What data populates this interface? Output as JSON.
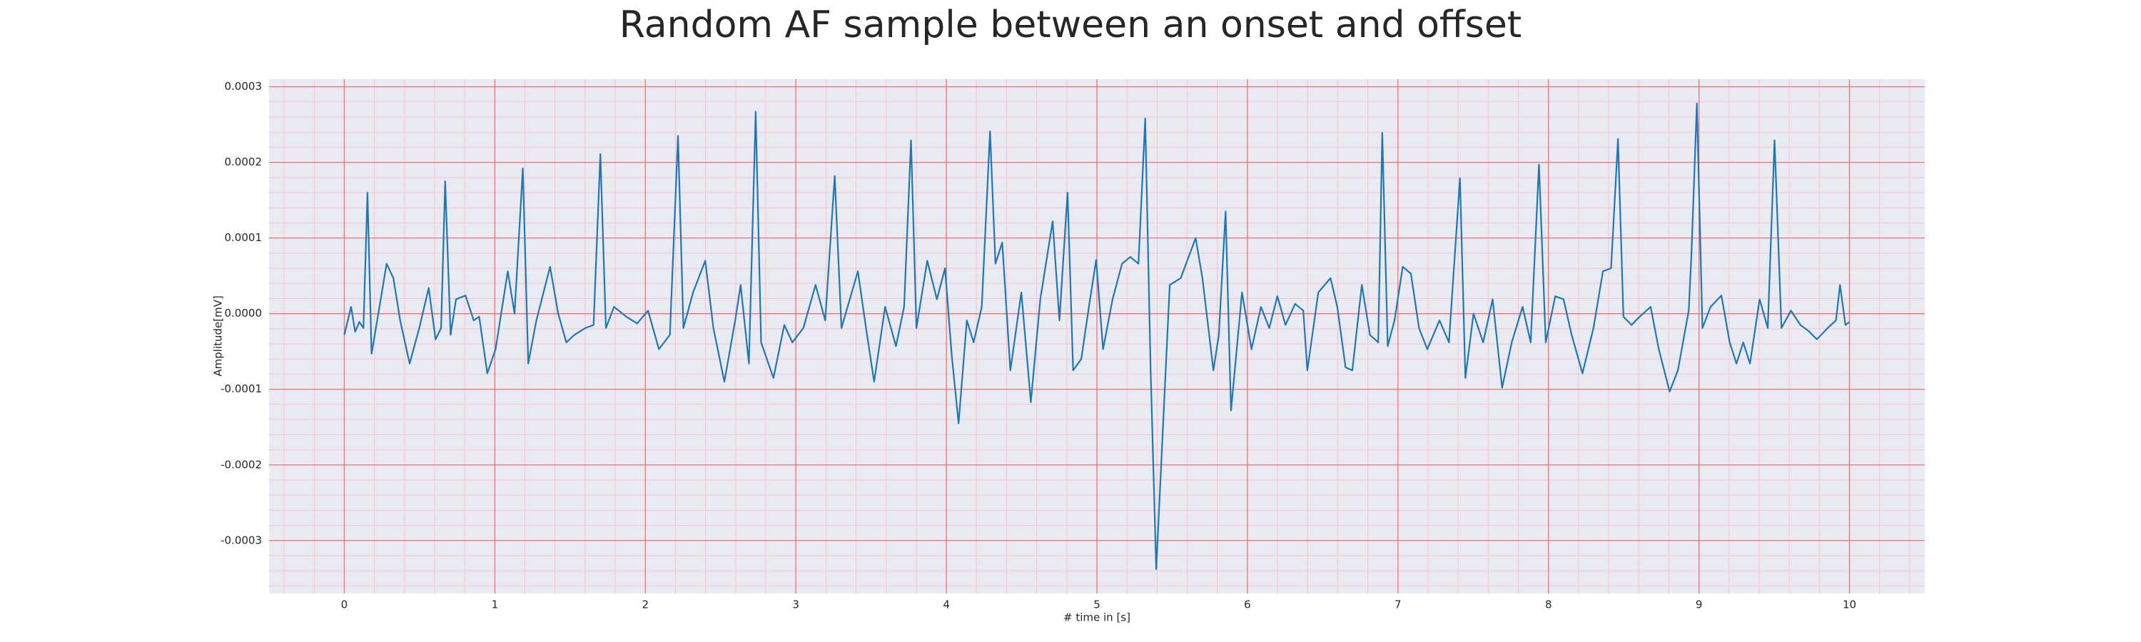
{
  "chart_data": {
    "type": "line",
    "title": "Random AF sample between an onset and offset",
    "xlabel": "# time in [s]",
    "ylabel": "Amplitude[mV]",
    "xlim": [
      -0.5,
      10.5
    ],
    "ylim": [
      -0.00037,
      0.00031
    ],
    "xticks": [
      0,
      1,
      2,
      3,
      4,
      5,
      6,
      7,
      8,
      9,
      10
    ],
    "yticks": [
      -0.0003,
      -0.0002,
      -0.0001,
      {
        "value": 0,
        "label": "0.0000"
      },
      0.0001,
      0.0002,
      0.0003
    ],
    "grid": true,
    "minor_grid_divisions": 5,
    "background": "#eaeaf2",
    "grid_color": "#f07070",
    "minor_grid_color": "#f6c4cc",
    "series": [
      {
        "color": "#1f77b4",
        "x": [
          0,
          0.045,
          0.072,
          0.1,
          0.127,
          0.154,
          0.181,
          0.226,
          0.281,
          0.326,
          0.371,
          0.434,
          0.498,
          0.561,
          0.606,
          0.643,
          0.67,
          0.706,
          0.742,
          0.805,
          0.86,
          0.896,
          0.95,
          1.005,
          1.086,
          1.131,
          1.186,
          1.222,
          1.276,
          1.367,
          1.421,
          1.475,
          1.529,
          1.602,
          1.656,
          1.701,
          1.738,
          1.792,
          1.873,
          1.946,
          2.018,
          2.09,
          2.163,
          2.217,
          2.253,
          2.317,
          2.398,
          2.452,
          2.525,
          2.597,
          2.633,
          2.688,
          2.733,
          2.769,
          2.851,
          2.923,
          2.977,
          3.05,
          3.131,
          3.195,
          3.258,
          3.303,
          3.412,
          3.466,
          3.52,
          3.593,
          3.665,
          3.719,
          3.765,
          3.801,
          3.873,
          3.937,
          3.991,
          4.036,
          4.081,
          4.136,
          4.181,
          4.235,
          4.29,
          4.326,
          4.371,
          4.425,
          4.498,
          4.561,
          4.624,
          4.706,
          4.751,
          4.805,
          4.842,
          4.896,
          4.95,
          4.995,
          5.041,
          5.104,
          5.167,
          5.222,
          5.276,
          5.321,
          5.357,
          5.394,
          5.439,
          5.484,
          5.557,
          5.656,
          5.701,
          5.774,
          5.81,
          5.855,
          5.891,
          5.964,
          6.027,
          6.09,
          6.145,
          6.199,
          6.253,
          6.317,
          6.371,
          6.398,
          6.471,
          6.552,
          6.597,
          6.652,
          6.697,
          6.76,
          6.814,
          6.869,
          6.896,
          6.932,
          6.977,
          7.032,
          7.086,
          7.14,
          7.195,
          7.276,
          7.339,
          7.412,
          7.448,
          7.502,
          7.566,
          7.629,
          7.692,
          7.756,
          7.828,
          7.882,
          7.937,
          7.982,
          8.045,
          8.1,
          8.154,
          8.226,
          8.299,
          8.362,
          8.416,
          8.462,
          8.498,
          8.552,
          8.606,
          8.679,
          8.733,
          8.805,
          8.86,
          8.932,
          8.95,
          8.986,
          9.023,
          9.077,
          9.149,
          9.204,
          9.249,
          9.294,
          9.339,
          9.403,
          9.457,
          9.502,
          9.548,
          9.611,
          9.674,
          9.729,
          9.783,
          9.855,
          9.91,
          9.937,
          9.973,
          10
        ],
        "values": [
          -2.8e-05,
          9e-06,
          -2.4e-05,
          -1.1e-05,
          -1.9e-05,
          0.00016,
          -5.3e-05,
          0,
          6.6e-05,
          4.7e-05,
          -9e-06,
          -6.6e-05,
          -1.9e-05,
          3.4e-05,
          -3.4e-05,
          -1.9e-05,
          0.000175,
          -2.8e-05,
          1.9e-05,
          2.4e-05,
          -9e-06,
          -4e-06,
          -7.9e-05,
          -4.7e-05,
          5.6e-05,
          0,
          0.000192,
          -6.6e-05,
          -9e-06,
          6.2e-05,
          0,
          -3.8e-05,
          -2.8e-05,
          -1.9e-05,
          -1.5e-05,
          0.000211,
          -1.9e-05,
          9e-06,
          -4e-06,
          -1.3e-05,
          4e-06,
          -4.7e-05,
          -2.8e-05,
          0.000235,
          -1.9e-05,
          2.8e-05,
          7e-05,
          -1.9e-05,
          -9e-05,
          -9e-06,
          3.8e-05,
          -6.6e-05,
          0.000267,
          -3.8e-05,
          -8.5e-05,
          -1.5e-05,
          -3.8e-05,
          -1.9e-05,
          3.8e-05,
          -9e-06,
          0.000182,
          -1.9e-05,
          5.6e-05,
          -1.9e-05,
          -9e-05,
          9e-06,
          -4.3e-05,
          9e-06,
          0.000229,
          -1.9e-05,
          7e-05,
          1.9e-05,
          6e-05,
          -5.6e-05,
          -0.000145,
          -9e-06,
          -3.8e-05,
          9e-06,
          0.000241,
          6.6e-05,
          9.4e-05,
          -7.5e-05,
          2.8e-05,
          -0.000117,
          1.9e-05,
          0.000122,
          -9e-06,
          0.00016,
          -7.5e-05,
          -6e-05,
          1.3e-05,
          7.1e-05,
          -4.7e-05,
          1.9e-05,
          6.6e-05,
          7.5e-05,
          6.6e-05,
          0.000258,
          -7.5e-05,
          -0.000338,
          -0.00015,
          3.8e-05,
          4.7e-05,
          0.0001,
          4.7e-05,
          -7.5e-05,
          -2.8e-05,
          0.000135,
          -0.000128,
          2.8e-05,
          -4.7e-05,
          9e-06,
          -1.9e-05,
          2.3e-05,
          -1.5e-05,
          1.3e-05,
          4e-06,
          -7.5e-05,
          2.8e-05,
          4.7e-05,
          9e-06,
          -7.1e-05,
          -7.5e-05,
          3.8e-05,
          -2.8e-05,
          -3.8e-05,
          0.000239,
          -4.3e-05,
          -9e-06,
          6.2e-05,
          5.3e-05,
          -1.9e-05,
          -4.7e-05,
          -9e-06,
          -3.8e-05,
          0.000179,
          -8.5e-05,
          0,
          -3.8e-05,
          1.9e-05,
          -9.8e-05,
          -3.8e-05,
          9e-06,
          -3.8e-05,
          0.000197,
          -3.8e-05,
          2.3e-05,
          1.9e-05,
          -2.8e-05,
          -7.9e-05,
          -1.9e-05,
          5.6e-05,
          6e-05,
          0.000231,
          -4e-06,
          -1.5e-05,
          -4e-06,
          9e-06,
          -4.7e-05,
          -0.000103,
          -7.5e-05,
          4e-06,
          7.9e-05,
          0.000278,
          -1.9e-05,
          9e-06,
          2.4e-05,
          -3.8e-05,
          -6.6e-05,
          -3.8e-05,
          -6.6e-05,
          1.9e-05,
          -1.9e-05,
          0.000229,
          -1.9e-05,
          4e-06,
          -1.5e-05,
          -2.3e-05,
          -3.4e-05,
          -1.9e-05,
          -9e-06,
          3.8e-05,
          -1.5e-05,
          -1.1e-05
        ]
      }
    ]
  }
}
